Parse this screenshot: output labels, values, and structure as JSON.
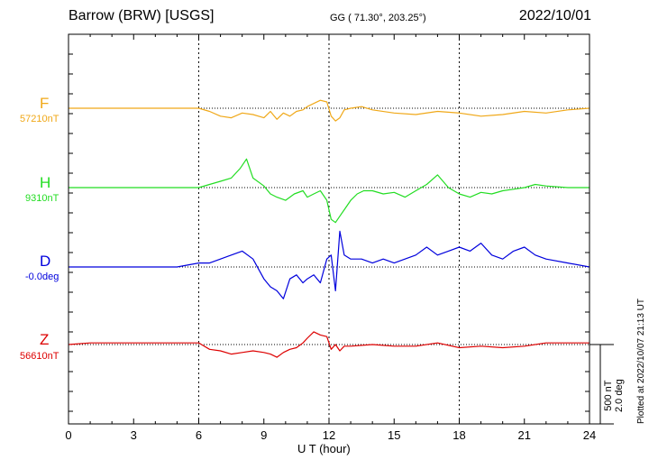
{
  "header": {
    "station": "Barrow (BRW)  [USGS]",
    "coords": "GG ( 71.30°, 203.25°)",
    "date": "2022/10/01"
  },
  "footer": {
    "xlabel": "U T (hour)",
    "plotted": "Plotted at 2022/10/07 21:13 UT"
  },
  "scale": {
    "nt": "500 nT",
    "deg": "2.0 deg"
  },
  "chart_data": {
    "type": "line",
    "x_ticks": [
      "0",
      "3",
      "6",
      "9",
      "12",
      "15",
      "18",
      "21",
      "24"
    ],
    "xlim": [
      0,
      24
    ],
    "grid": "dotted vertical lines every 6 hours",
    "series": [
      {
        "name": "F",
        "baseline": "57210nT",
        "color": "#f0a818",
        "x": [
          0,
          1,
          2,
          3,
          4,
          5,
          6,
          6.5,
          7,
          7.5,
          8,
          8.5,
          9,
          9.3,
          9.6,
          9.9,
          10.2,
          10.5,
          10.8,
          11,
          11.3,
          11.6,
          11.9,
          12.1,
          12.3,
          12.5,
          12.7,
          13,
          13.5,
          14,
          15,
          16,
          17,
          18,
          19,
          20,
          21,
          22,
          23,
          24
        ],
        "y": [
          0,
          0,
          0,
          0,
          0,
          0,
          0,
          -20,
          -50,
          -60,
          -30,
          -40,
          -60,
          -20,
          -70,
          -30,
          -50,
          -20,
          -10,
          10,
          30,
          50,
          40,
          -50,
          -80,
          -60,
          -10,
          0,
          10,
          -10,
          -30,
          -40,
          -20,
          -30,
          -50,
          -40,
          -20,
          -30,
          -10,
          0
        ]
      },
      {
        "name": "H",
        "baseline": "9310nT",
        "color": "#22dd22",
        "x": [
          0,
          1,
          2,
          3,
          4,
          5,
          6,
          6.5,
          7,
          7.5,
          7.9,
          8.2,
          8.5,
          9,
          9.3,
          9.6,
          10,
          10.4,
          10.8,
          11,
          11.3,
          11.6,
          11.9,
          12.1,
          12.3,
          12.5,
          12.8,
          13,
          13.3,
          13.6,
          14,
          14.5,
          15,
          15.5,
          16,
          16.5,
          17,
          17.5,
          18,
          18.5,
          19,
          19.5,
          20,
          20.5,
          21,
          21.5,
          22,
          23,
          24
        ],
        "y": [
          0,
          0,
          0,
          0,
          0,
          0,
          0,
          20,
          40,
          60,
          120,
          180,
          60,
          10,
          -40,
          -60,
          -80,
          -40,
          -20,
          -60,
          -40,
          -20,
          -80,
          -200,
          -220,
          -180,
          -120,
          -80,
          -40,
          -20,
          -20,
          -40,
          -30,
          -60,
          -20,
          20,
          80,
          0,
          -40,
          -60,
          -30,
          -40,
          -20,
          -10,
          0,
          20,
          10,
          0,
          0
        ]
      },
      {
        "name": "D",
        "baseline": "-0.0deg",
        "color": "#0000dd",
        "x": [
          0,
          1,
          2,
          3,
          4,
          5,
          6,
          6.5,
          7,
          7.5,
          8,
          8.5,
          9,
          9.3,
          9.6,
          9.9,
          10.2,
          10.5,
          10.8,
          11,
          11.3,
          11.6,
          11.9,
          12.1,
          12.3,
          12.5,
          12.7,
          13,
          13.5,
          14,
          14.5,
          15,
          16,
          16.5,
          17,
          17.5,
          18,
          18.5,
          19,
          19.5,
          20,
          20.5,
          21,
          21.5,
          22,
          23,
          24
        ],
        "y": [
          0,
          0,
          0,
          0,
          0,
          0,
          0.1,
          0.1,
          0.2,
          0.3,
          0.4,
          0.2,
          -0.3,
          -0.5,
          -0.6,
          -0.8,
          -0.3,
          -0.2,
          -0.4,
          -0.3,
          -0.2,
          -0.4,
          0.2,
          0.3,
          -0.6,
          0.9,
          0.3,
          0.2,
          0.2,
          0.1,
          0.2,
          0.1,
          0.3,
          0.5,
          0.3,
          0.4,
          0.5,
          0.4,
          0.6,
          0.3,
          0.2,
          0.4,
          0.5,
          0.3,
          0.2,
          0.1,
          0
        ]
      },
      {
        "name": "Z",
        "baseline": "56610nT",
        "color": "#dd0000",
        "x": [
          0,
          1,
          2,
          3,
          4,
          5,
          6,
          6.5,
          7,
          7.5,
          8,
          8.5,
          9,
          9.3,
          9.6,
          9.9,
          10.2,
          10.5,
          10.8,
          11,
          11.3,
          11.6,
          11.9,
          12.1,
          12.3,
          12.5,
          12.7,
          13,
          14,
          15,
          16,
          17,
          18,
          19,
          20,
          21,
          22,
          23,
          24
        ],
        "y": [
          0,
          10,
          10,
          10,
          10,
          10,
          10,
          -30,
          -40,
          -60,
          -50,
          -40,
          -50,
          -60,
          -80,
          -50,
          -30,
          -20,
          10,
          40,
          80,
          60,
          50,
          -30,
          0,
          -40,
          -10,
          -10,
          0,
          -10,
          -10,
          10,
          -20,
          -10,
          -20,
          -10,
          10,
          10,
          10
        ]
      }
    ]
  }
}
